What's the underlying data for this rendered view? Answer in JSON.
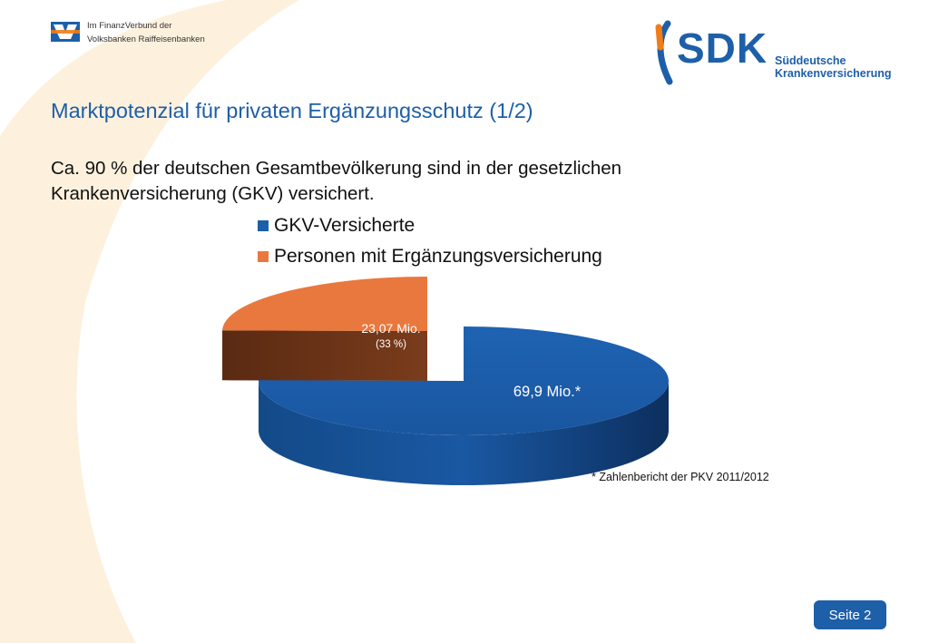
{
  "header": {
    "vr_line1": "Im FinanzVerbund der",
    "vr_line2": "Volksbanken Raiffeisenbanken",
    "sdk_word": "SDK",
    "sdk_sub1": "Süddeutsche",
    "sdk_sub2": "Krankenversicherung"
  },
  "slide": {
    "title": "Marktpotenzial für privaten Ergänzungsschutz (1/2)",
    "subtitle": "Ca. 90 % der deutschen Gesamtbevölkerung sind in der gesetzlichen Krankenversicherung (GKV) versichert.",
    "footnote": "* Zahlenbericht der PKV 2011/2012",
    "page_label": "Seite 2"
  },
  "colors": {
    "brand_blue": "#1d5fa8",
    "brand_orange": "#f07d1a",
    "bg_swoosh": "#fdf1de"
  },
  "chart_data": {
    "type": "pie",
    "style": "3d-exploded",
    "legend_position": "top",
    "series": [
      {
        "name": "GKV-Versicherte",
        "value": 69.9,
        "label": "69,9 Mio.*",
        "color": "#1d5fa8"
      },
      {
        "name": "Personen mit Ergänzungsversicherung",
        "value": 23.07,
        "label": "23,07 Mio.",
        "sub_label": "(33 %)",
        "color": "#e9783e"
      }
    ]
  }
}
